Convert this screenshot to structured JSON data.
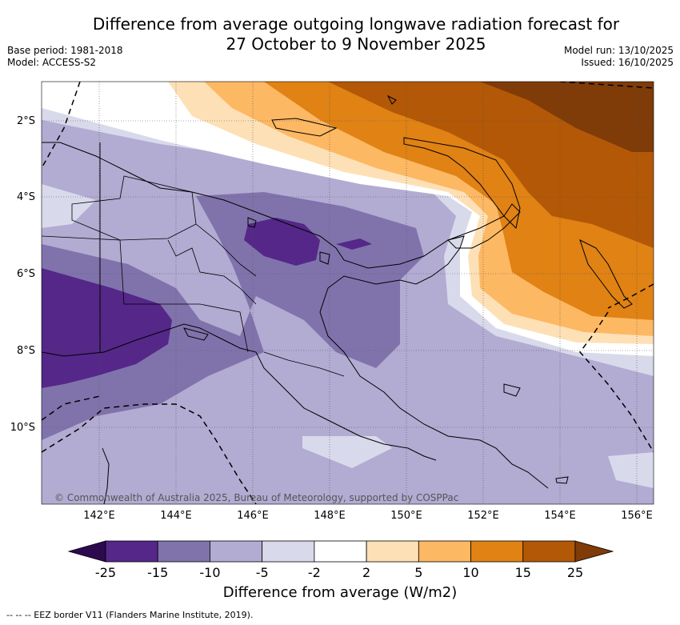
{
  "title": {
    "line1": "Difference from average outgoing longwave radiation forecast for",
    "line2": "27 October to 9 November 2025"
  },
  "meta_left": {
    "base_period": "Base period: 1981-2018",
    "model": "Model: ACCESS-S2"
  },
  "meta_right": {
    "model_run": "Model run: 13/10/2025",
    "issued": "Issued: 16/10/2025"
  },
  "map": {
    "lon_labels": [
      "142°E",
      "144°E",
      "146°E",
      "148°E",
      "150°E",
      "152°E",
      "154°E",
      "156°E"
    ],
    "lat_labels": [
      "2°S",
      "4°S",
      "6°S",
      "8°S",
      "10°S"
    ],
    "credit": "© Commonwealth of Australia 2025, Bureau of Meteorology, supported by COSPPac"
  },
  "colorbar": {
    "label": "Difference from average (W/m2)",
    "ticks": [
      "-25",
      "-15",
      "-10",
      "-5",
      "-2",
      "2",
      "5",
      "10",
      "15",
      "25"
    ],
    "under_color": "#2d0a4e",
    "over_color": "#7f3b08",
    "colors": [
      "#542788",
      "#8073ac",
      "#b2abd2",
      "#d8daeb",
      "#ffffff",
      "#fee0b6",
      "#fdb863",
      "#e08214",
      "#b35806"
    ]
  },
  "legend": {
    "eez": "--  --  -- EEZ border V11 (Flanders Marine Institute, 2019)."
  }
}
